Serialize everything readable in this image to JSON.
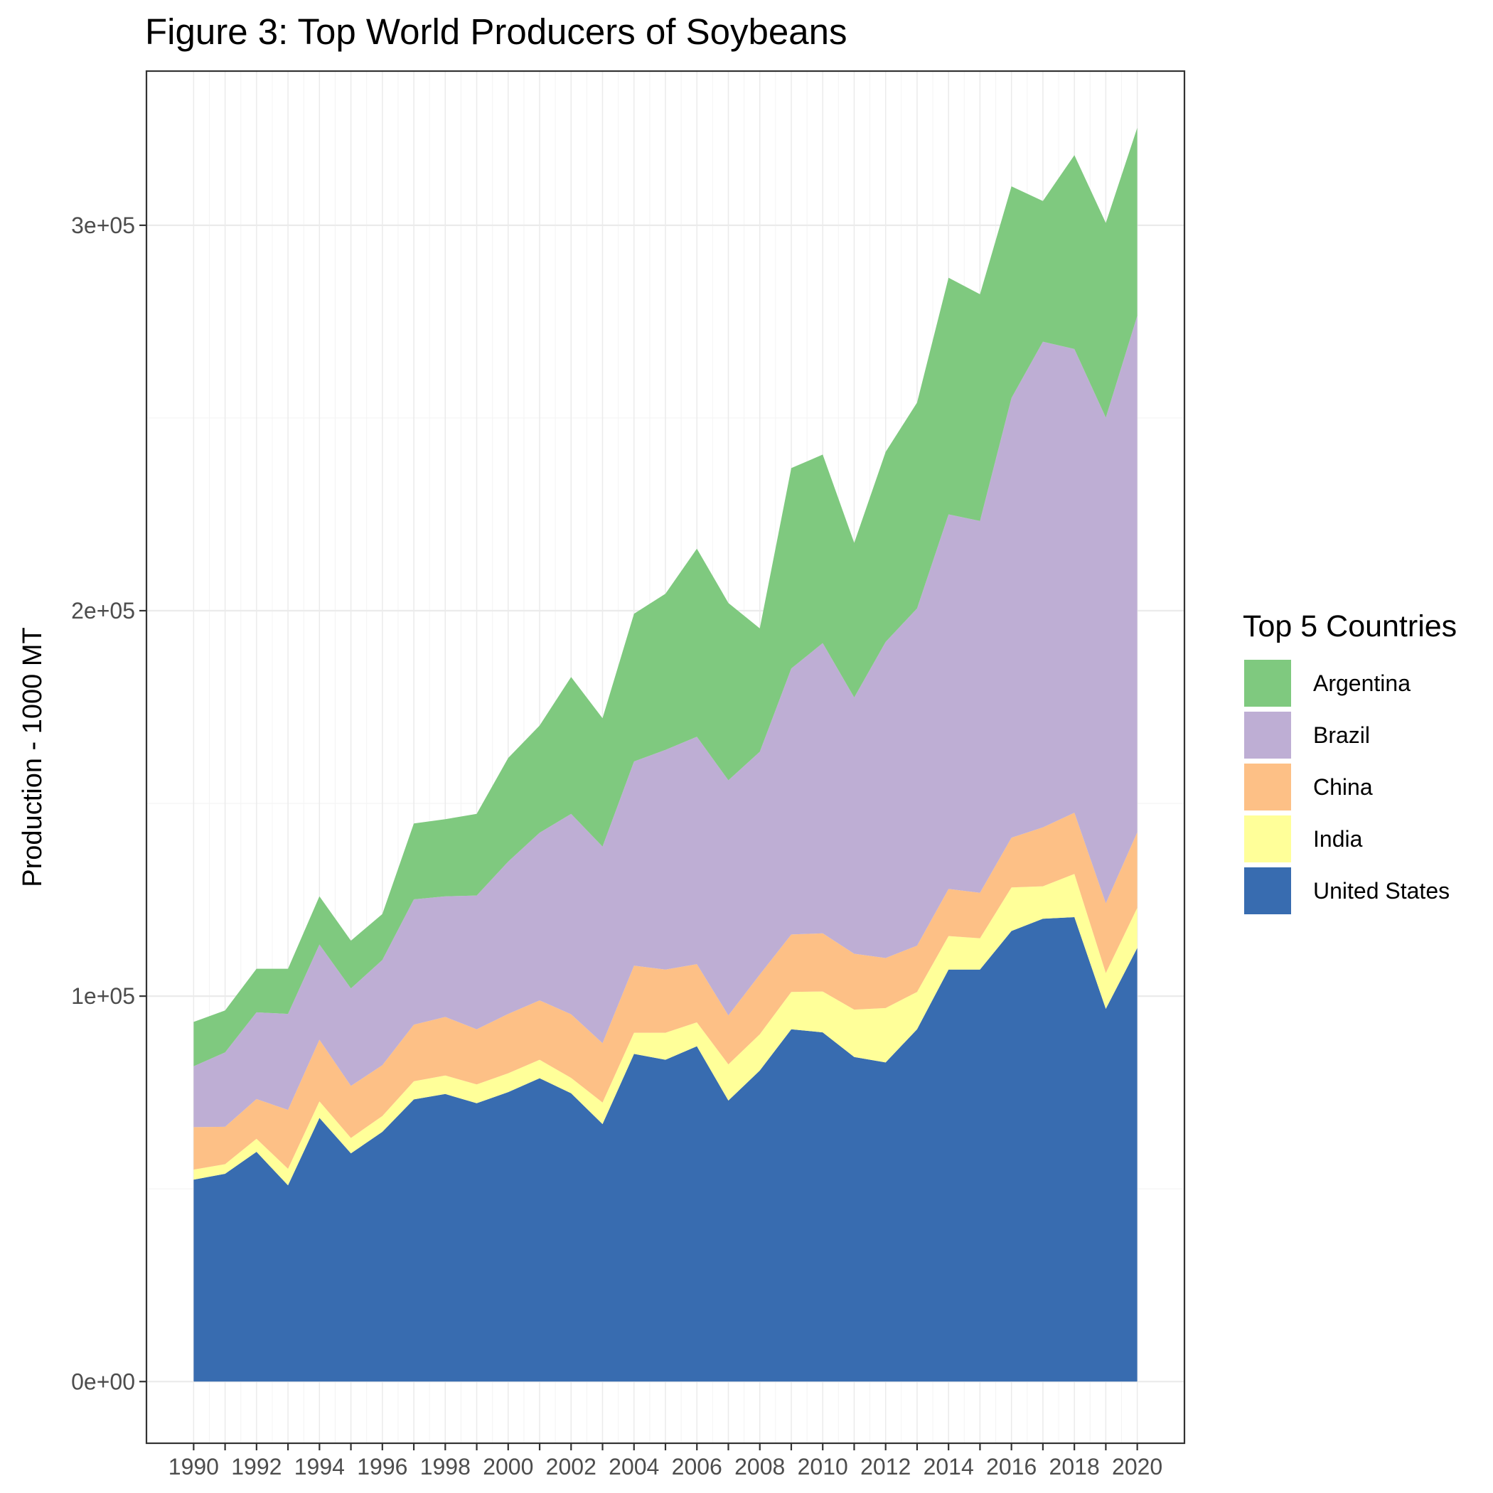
{
  "chart_data": {
    "type": "area",
    "stacked": true,
    "title": "Figure 3: Top World Producers of Soybeans",
    "xlabel": "",
    "ylabel": "Production - 1000 MT",
    "xlim": [
      1988.5,
      2021.5
    ],
    "ylim": [
      -16000,
      340000
    ],
    "grid": true,
    "legend_position": "right",
    "legend_title": "Top 5 Countries",
    "x": [
      1990,
      1991,
      1992,
      1993,
      1994,
      1995,
      1996,
      1997,
      1998,
      1999,
      2000,
      2001,
      2002,
      2003,
      2004,
      2005,
      2006,
      2007,
      2008,
      2009,
      2010,
      2011,
      2012,
      2013,
      2014,
      2015,
      2016,
      2017,
      2018,
      2019,
      2020
    ],
    "x_ticks": [
      "1990",
      "1992",
      "1994",
      "1996",
      "1998",
      "2000",
      "2002",
      "2004",
      "2006",
      "2008",
      "2010",
      "2012",
      "2014",
      "2016",
      "2018",
      "2020"
    ],
    "x_tick_values": [
      1990,
      1992,
      1994,
      1996,
      1998,
      2000,
      2002,
      2004,
      2006,
      2008,
      2010,
      2012,
      2014,
      2016,
      2018,
      2020
    ],
    "y_ticks": [
      "0e+00",
      "1e+05",
      "2e+05",
      "3e+05"
    ],
    "y_tick_values": [
      0,
      100000,
      200000,
      300000
    ],
    "series": [
      {
        "name": "United States",
        "color": "#386cb0",
        "values": [
          52400,
          53900,
          59600,
          50900,
          68400,
          59200,
          64800,
          73200,
          74600,
          72200,
          75100,
          78700,
          74800,
          66800,
          85000,
          83500,
          87000,
          72900,
          80700,
          91400,
          90600,
          84200,
          82800,
          91400,
          106900,
          106900,
          116900,
          120100,
          120500,
          96700,
          112500
        ]
      },
      {
        "name": "India",
        "color": "#ffff99",
        "values": [
          2600,
          2500,
          3400,
          4300,
          4300,
          4000,
          4100,
          4700,
          4800,
          4900,
          4900,
          4800,
          4000,
          5600,
          5500,
          7000,
          6200,
          9400,
          9400,
          9700,
          10600,
          12300,
          14100,
          9700,
          8700,
          8100,
          11300,
          8400,
          11200,
          9300,
          10400
        ]
      },
      {
        "name": "China",
        "color": "#fdc086",
        "values": [
          11000,
          9700,
          10300,
          15300,
          16000,
          13500,
          13200,
          14700,
          15200,
          14300,
          15400,
          15400,
          16500,
          15400,
          17400,
          16400,
          15100,
          12700,
          15500,
          14900,
          15100,
          14500,
          13000,
          12000,
          12200,
          11800,
          12900,
          15300,
          15900,
          18100,
          19600
        ]
      },
      {
        "name": "Brazil",
        "color": "#beaed4",
        "values": [
          15800,
          19300,
          22500,
          24900,
          24700,
          25300,
          27300,
          32500,
          31300,
          34700,
          39500,
          43500,
          52000,
          51000,
          53000,
          57000,
          59000,
          61000,
          57800,
          69000,
          75300,
          66500,
          82000,
          87500,
          97200,
          96500,
          114100,
          126000,
          120300,
          126000,
          134000
        ]
      },
      {
        "name": "Argentina",
        "color": "#7fc97f",
        "values": [
          11500,
          10900,
          11300,
          11700,
          12500,
          12400,
          11900,
          19700,
          20000,
          21200,
          26900,
          27800,
          35500,
          33300,
          38300,
          40500,
          48800,
          46000,
          32000,
          52000,
          48900,
          40100,
          49300,
          53400,
          61400,
          58800,
          54900,
          36500,
          50300,
          50500,
          48800
        ]
      }
    ]
  }
}
